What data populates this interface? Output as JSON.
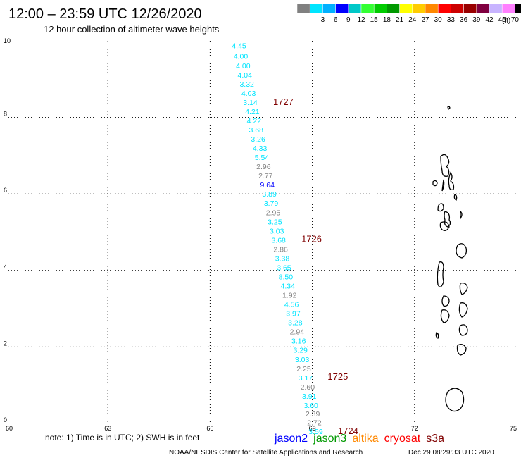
{
  "header": {
    "title": "12:00 – 23:59 UTC 12/26/2020",
    "subtitle": "12 hour collection of altimeter wave heights"
  },
  "color_scale": {
    "unit_label": "(ft)",
    "entries": [
      {
        "label": "",
        "color": "#808080"
      },
      {
        "label": "3",
        "color": "#00e5ff"
      },
      {
        "label": "6",
        "color": "#00b0ff"
      },
      {
        "label": "9",
        "color": "#0000ff"
      },
      {
        "label": "12",
        "color": "#00c8c8"
      },
      {
        "label": "15",
        "color": "#33ff33"
      },
      {
        "label": "18",
        "color": "#00cc00"
      },
      {
        "label": "21",
        "color": "#009900"
      },
      {
        "label": "24",
        "color": "#ffff00"
      },
      {
        "label": "27",
        "color": "#ffcc00"
      },
      {
        "label": "30",
        "color": "#ff8800"
      },
      {
        "label": "33",
        "color": "#ff0000"
      },
      {
        "label": "36",
        "color": "#cc0000"
      },
      {
        "label": "39",
        "color": "#990000"
      },
      {
        "label": "42",
        "color": "#800040"
      },
      {
        "label": "45",
        "color": "#c8b4ff"
      },
      {
        "label": "70",
        "color": "#ff80ff"
      },
      {
        "label": "",
        "color": "#000000"
      }
    ]
  },
  "map": {
    "lon_min": 60,
    "lon_max": 75,
    "lat_min": 0,
    "lat_max": 10,
    "lon_ticks": [
      "60",
      "63",
      "66",
      "69",
      "72",
      "75"
    ],
    "lat_ticks": [
      "0",
      "2",
      "4",
      "6",
      "8",
      "10"
    ],
    "track_color_default": "#00e5ff",
    "track_color_gray": "#808080",
    "track_color_blue": "#0000ff",
    "time_label_color": "#800000",
    "observations": [
      {
        "label": "4.45",
        "lat": 9.88,
        "lon": 66.85,
        "c": "cyan"
      },
      {
        "label": "4.00",
        "lat": 9.6,
        "lon": 66.9,
        "c": "cyan"
      },
      {
        "label": "4.00",
        "lat": 9.36,
        "lon": 66.97,
        "c": "cyan"
      },
      {
        "label": "4.04",
        "lat": 9.12,
        "lon": 67.02,
        "c": "cyan"
      },
      {
        "label": "3.32",
        "lat": 8.88,
        "lon": 67.08,
        "c": "cyan"
      },
      {
        "label": "4.03",
        "lat": 8.64,
        "lon": 67.13,
        "c": "cyan"
      },
      {
        "label": "3.14",
        "lat": 8.4,
        "lon": 67.18,
        "c": "cyan"
      },
      {
        "label": "4.21",
        "lat": 8.16,
        "lon": 67.24,
        "c": "cyan"
      },
      {
        "label": "4.22",
        "lat": 7.92,
        "lon": 67.29,
        "c": "cyan"
      },
      {
        "label": "3.68",
        "lat": 7.68,
        "lon": 67.35,
        "c": "cyan"
      },
      {
        "label": "3.26",
        "lat": 7.44,
        "lon": 67.41,
        "c": "cyan"
      },
      {
        "label": "4.33",
        "lat": 7.2,
        "lon": 67.46,
        "c": "cyan"
      },
      {
        "label": "5.54",
        "lat": 6.96,
        "lon": 67.52,
        "c": "cyan"
      },
      {
        "label": "2.96",
        "lat": 6.72,
        "lon": 67.57,
        "c": "gray"
      },
      {
        "label": "2.77",
        "lat": 6.48,
        "lon": 67.63,
        "c": "gray"
      },
      {
        "label": "9.64",
        "lat": 6.24,
        "lon": 67.68,
        "c": "blue"
      },
      {
        "label": "3.89",
        "lat": 6.0,
        "lon": 67.74,
        "c": "cyan"
      },
      {
        "label": "3.79",
        "lat": 5.76,
        "lon": 67.79,
        "c": "cyan"
      },
      {
        "label": "2.95",
        "lat": 5.52,
        "lon": 67.85,
        "c": "gray"
      },
      {
        "label": "3.25",
        "lat": 5.28,
        "lon": 67.9,
        "c": "cyan"
      },
      {
        "label": "3.03",
        "lat": 5.04,
        "lon": 67.96,
        "c": "cyan"
      },
      {
        "label": "3.68",
        "lat": 4.8,
        "lon": 68.01,
        "c": "cyan"
      },
      {
        "label": "2.86",
        "lat": 4.56,
        "lon": 68.07,
        "c": "gray"
      },
      {
        "label": "3.38",
        "lat": 4.32,
        "lon": 68.12,
        "c": "cyan"
      },
      {
        "label": "3.65",
        "lat": 4.08,
        "lon": 68.17,
        "c": "cyan"
      },
      {
        "label": "8.50",
        "lat": 3.84,
        "lon": 68.22,
        "c": "cyan"
      },
      {
        "label": "4.34",
        "lat": 3.6,
        "lon": 68.28,
        "c": "cyan"
      },
      {
        "label": "1.92",
        "lat": 3.36,
        "lon": 68.33,
        "c": "gray"
      },
      {
        "label": "4.56",
        "lat": 3.12,
        "lon": 68.39,
        "c": "cyan"
      },
      {
        "label": "3.97",
        "lat": 2.88,
        "lon": 68.44,
        "c": "cyan"
      },
      {
        "label": "3.28",
        "lat": 2.64,
        "lon": 68.5,
        "c": "cyan"
      },
      {
        "label": "2.94",
        "lat": 2.4,
        "lon": 68.55,
        "c": "gray"
      },
      {
        "label": "3.16",
        "lat": 2.16,
        "lon": 68.6,
        "c": "cyan"
      },
      {
        "label": "3.29",
        "lat": 1.92,
        "lon": 68.65,
        "c": "cyan"
      },
      {
        "label": "3.03",
        "lat": 1.68,
        "lon": 68.7,
        "c": "cyan"
      },
      {
        "label": "2.25",
        "lat": 1.44,
        "lon": 68.75,
        "c": "gray"
      },
      {
        "label": "3.17",
        "lat": 1.2,
        "lon": 68.8,
        "c": "cyan"
      },
      {
        "label": "2.60",
        "lat": 0.96,
        "lon": 68.86,
        "c": "gray"
      },
      {
        "label": "3.91",
        "lat": 0.72,
        "lon": 68.91,
        "c": "cyan"
      },
      {
        "label": "3.60",
        "lat": 0.48,
        "lon": 68.96,
        "c": "cyan"
      },
      {
        "label": "2.39",
        "lat": 0.26,
        "lon": 69.01,
        "c": "gray"
      },
      {
        "label": "2.72",
        "lat": 0.03,
        "lon": 69.06,
        "c": "gray"
      },
      {
        "label": "3.59",
        "lat": -0.2,
        "lon": 69.1,
        "c": "cyan"
      }
    ],
    "time_labels": [
      {
        "label": "1727",
        "lat": 8.4,
        "lon": 67.85
      },
      {
        "label": "1726",
        "lat": 4.82,
        "lon": 68.68
      },
      {
        "label": "1725",
        "lat": 1.22,
        "lon": 69.45
      },
      {
        "label": "1724",
        "lat": -0.2,
        "lon": 69.75
      }
    ]
  },
  "footer": {
    "note": "note: 1) Time is in UTC; 2) SWH is in feet",
    "satellites": [
      {
        "label": "jason2",
        "color": "#0000ff"
      },
      {
        "label": "jason3",
        "color": "#009900"
      },
      {
        "label": "altika",
        "color": "#ff8800"
      },
      {
        "label": "cryosat",
        "color": "#ff0000"
      },
      {
        "label": "s3a",
        "color": "#800000"
      }
    ],
    "credit": "NOAA/NESDIS Center for Satellite Applications and Research",
    "generated": "Dec 29 08:29:33 UTC 2020"
  }
}
